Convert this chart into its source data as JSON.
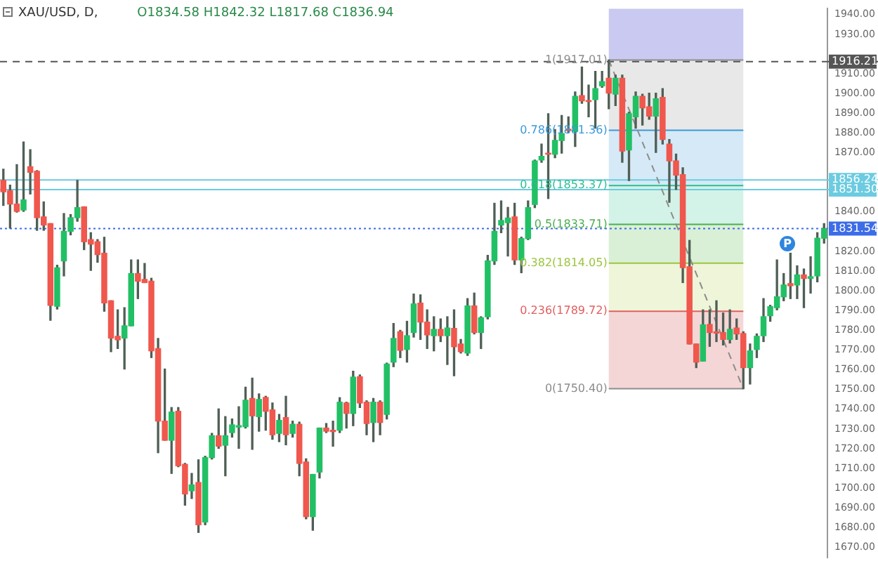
{
  "chart_data": {
    "type": "candlestick",
    "title": "XAU/USD, D,",
    "subtitle": "O1834.58 H1842.32 L1817.68 C1836.94",
    "categories": [
      null,
      null,
      null,
      null,
      null,
      null,
      null,
      null,
      null,
      null,
      null,
      null,
      null,
      null,
      null,
      null,
      null,
      null,
      null,
      null,
      null,
      null,
      null,
      null,
      null,
      null,
      null,
      null,
      null,
      null,
      null,
      null,
      null,
      null,
      null,
      null,
      null,
      null,
      null,
      null,
      null,
      null,
      null,
      null,
      null,
      null,
      null,
      null,
      null,
      null,
      null,
      null,
      null,
      null,
      null,
      null,
      null,
      null,
      null,
      null,
      null,
      null,
      null,
      null,
      null,
      null,
      null,
      null,
      null,
      null,
      null,
      null,
      null,
      null,
      null,
      null,
      null,
      null,
      null,
      null,
      null,
      null,
      null,
      null,
      null,
      null,
      null,
      null,
      null,
      null,
      null,
      null,
      null,
      null,
      null,
      null,
      null,
      null,
      null,
      null,
      null,
      null,
      null,
      null,
      null,
      null,
      null,
      null,
      null,
      null,
      null,
      null,
      null,
      null,
      null,
      null,
      null,
      null,
      null,
      null,
      null,
      null,
      null
    ],
    "ohlc": [
      [
        1856.0,
        1861.7,
        1843.3,
        1850.2
      ],
      [
        1850.7,
        1853.6,
        1831.8,
        1844.0
      ],
      [
        1844.0,
        1864.0,
        1839.9,
        1840.3
      ],
      [
        1841.0,
        1875.5,
        1840.3,
        1846.1
      ],
      [
        1862.9,
        1871.6,
        1849.1,
        1860.1
      ],
      [
        1860.6,
        1861.0,
        1830.7,
        1837.1
      ],
      [
        1837.5,
        1845.1,
        1830.7,
        1833.4
      ],
      [
        1834.1,
        1834.1,
        1785.1,
        1792.7
      ],
      [
        1792.2,
        1813.0,
        1790.8,
        1811.7
      ],
      [
        1815.2,
        1839.2,
        1807.6,
        1830.2
      ],
      [
        1830.2,
        1838.7,
        1828.4,
        1837.1
      ],
      [
        1837.1,
        1856.0,
        1835.3,
        1842.2
      ],
      [
        1842.6,
        1842.6,
        1820.9,
        1824.9
      ],
      [
        1826.0,
        1829.5,
        1810.4,
        1823.7
      ],
      [
        1824.9,
        1826.0,
        1814.5,
        1818.4
      ],
      [
        1819.1,
        1827.2,
        1789.7,
        1793.9
      ],
      [
        1795.0,
        1795.0,
        1769.2,
        1776.1
      ],
      [
        1777.0,
        1790.4,
        1770.8,
        1775.2
      ],
      [
        1776.1,
        1791.5,
        1760.4,
        1782.3
      ],
      [
        1782.3,
        1815.7,
        1782.3,
        1808.8
      ],
      [
        1808.8,
        1815.7,
        1796.1,
        1804.9
      ],
      [
        1805.8,
        1813.9,
        1804.2,
        1804.2
      ],
      [
        1804.9,
        1806.4,
        1766.2,
        1769.6
      ],
      [
        1770.8,
        1775.9,
        1718.0,
        1734.0
      ],
      [
        1734.0,
        1760.4,
        1724.3,
        1724.3
      ],
      [
        1724.3,
        1740.9,
        1707.5,
        1738.6
      ],
      [
        1739.0,
        1740.9,
        1710.9,
        1711.4
      ],
      [
        1712.1,
        1712.6,
        1691.4,
        1697.1
      ],
      [
        1698.7,
        1707.5,
        1694.8,
        1701.7
      ],
      [
        1702.9,
        1714.4,
        1677.6,
        1681.5
      ],
      [
        1682.9,
        1716.2,
        1681.5,
        1715.5
      ],
      [
        1715.5,
        1727.8,
        1714.8,
        1726.6
      ],
      [
        1726.6,
        1740.2,
        1720.2,
        1721.3
      ],
      [
        1721.8,
        1736.3,
        1706.3,
        1726.6
      ],
      [
        1728.2,
        1735.1,
        1725.9,
        1732.1
      ],
      [
        1731.0,
        1741.3,
        1720.2,
        1731.7
      ],
      [
        1731.2,
        1751.2,
        1730.5,
        1744.6
      ],
      [
        1745.5,
        1755.8,
        1719.7,
        1736.7
      ],
      [
        1736.3,
        1747.8,
        1728.9,
        1745.0
      ],
      [
        1746.0,
        1746.6,
        1729.4,
        1739.0
      ],
      [
        1739.7,
        1743.2,
        1724.8,
        1727.1
      ],
      [
        1727.8,
        1737.4,
        1723.6,
        1734.4
      ],
      [
        1735.8,
        1746.6,
        1722.0,
        1727.1
      ],
      [
        1727.8,
        1734.0,
        1725.9,
        1732.4
      ],
      [
        1732.4,
        1733.5,
        1706.3,
        1712.6
      ],
      [
        1713.3,
        1714.9,
        1684.5,
        1685.6
      ],
      [
        1685.6,
        1707.0,
        1678.7,
        1707.0
      ],
      [
        1708.2,
        1730.5,
        1705.2,
        1730.5
      ],
      [
        1730.5,
        1732.8,
        1728.2,
        1728.9
      ],
      [
        1729.4,
        1734.0,
        1721.3,
        1728.7
      ],
      [
        1729.4,
        1745.9,
        1728.2,
        1743.6
      ],
      [
        1743.2,
        1743.6,
        1730.5,
        1737.9
      ],
      [
        1737.9,
        1759.3,
        1731.7,
        1756.3
      ],
      [
        1756.5,
        1757.4,
        1740.9,
        1743.2
      ],
      [
        1743.6,
        1744.3,
        1727.1,
        1732.8
      ],
      [
        1733.3,
        1745.5,
        1723.6,
        1743.6
      ],
      [
        1743.6,
        1744.3,
        1727.1,
        1733.3
      ],
      [
        1737.4,
        1763.4,
        1735.1,
        1762.9
      ],
      [
        1763.9,
        1783.5,
        1761.6,
        1775.9
      ],
      [
        1779.3,
        1780.0,
        1766.2,
        1769.9
      ],
      [
        1770.3,
        1784.6,
        1763.9,
        1777.3
      ],
      [
        1778.9,
        1798.4,
        1776.6,
        1793.4
      ],
      [
        1793.8,
        1798.0,
        1775.4,
        1784.2
      ],
      [
        1784.2,
        1790.4,
        1770.8,
        1777.7
      ],
      [
        1777.3,
        1786.9,
        1769.6,
        1780.5
      ],
      [
        1780.5,
        1785.8,
        1774.3,
        1777.3
      ],
      [
        1777.3,
        1786.9,
        1762.7,
        1781.2
      ],
      [
        1781.0,
        1790.4,
        1757.0,
        1771.7
      ],
      [
        1773.1,
        1775.4,
        1768.5,
        1769.2
      ],
      [
        1768.5,
        1796.1,
        1767.3,
        1792.4
      ],
      [
        1792.4,
        1798.9,
        1778.2,
        1778.9
      ],
      [
        1778.9,
        1786.9,
        1770.8,
        1786.4
      ],
      [
        1786.9,
        1818.0,
        1785.8,
        1815.2
      ],
      [
        1815.2,
        1844.4,
        1813.4,
        1830.2
      ],
      [
        1833.4,
        1845.6,
        1829.5,
        1835.7
      ],
      [
        1834.58,
        1842.32,
        1817.68,
        1836.94
      ],
      [
        1837.5,
        1844.4,
        1813.4,
        1815.7
      ],
      [
        1815.7,
        1827.2,
        1809.2,
        1826.5
      ],
      [
        1826.5,
        1845.6,
        1826.0,
        1842.2
      ],
      [
        1843.8,
        1866.3,
        1842.2,
        1865.9
      ],
      [
        1866.3,
        1874.4,
        1865.2,
        1868.2
      ],
      [
        1869.8,
        1889.8,
        1846.8,
        1869.3
      ],
      [
        1869.3,
        1881.8,
        1867.5,
        1876.3
      ],
      [
        1876.2,
        1888.9,
        1869.8,
        1879.7
      ],
      [
        1882.0,
        1888.2,
        1880.2,
        1881.3
      ],
      [
        1880.8,
        1900.8,
        1873.2,
        1898.6
      ],
      [
        1899.0,
        1913.5,
        1895.1,
        1896.3
      ],
      [
        1896.5,
        1904.3,
        1888.2,
        1896.0
      ],
      [
        1896.9,
        1911.2,
        1882.4,
        1902.5
      ],
      [
        1903.9,
        1911.2,
        1903.2,
        1906.1
      ],
      [
        1907.8,
        1917.01,
        1892.3,
        1900.2
      ],
      [
        1899.7,
        1909.4,
        1893.9,
        1907.8
      ],
      [
        1907.8,
        1909.4,
        1865.2,
        1870.9
      ],
      [
        1871.4,
        1890.5,
        1855.9,
        1889.8
      ],
      [
        1888.2,
        1900.8,
        1882.4,
        1898.6
      ],
      [
        1898.6,
        1899.7,
        1884.0,
        1892.8
      ],
      [
        1893.3,
        1900.2,
        1887.0,
        1888.6
      ],
      [
        1888.6,
        1900.2,
        1870.2,
        1897.4
      ],
      [
        1898.1,
        1902.5,
        1874.4,
        1876.7
      ],
      [
        1874.4,
        1876.7,
        1844.9,
        1865.9
      ],
      [
        1865.9,
        1869.3,
        1851.4,
        1858.7
      ],
      [
        1858.9,
        1862.4,
        1804.2,
        1811.8
      ],
      [
        1812.2,
        1825.6,
        1773.1,
        1773.1
      ],
      [
        1773.1,
        1773.1,
        1761.1,
        1763.9
      ],
      [
        1764.4,
        1790.4,
        1764.4,
        1782.8
      ],
      [
        1783.0,
        1790.4,
        1771.9,
        1778.9
      ],
      [
        1779.3,
        1795.0,
        1774.3,
        1778.6
      ],
      [
        1778.9,
        1788.8,
        1772.6,
        1775.4
      ],
      [
        1775.4,
        1790.4,
        1773.6,
        1780.5
      ],
      [
        1781.2,
        1785.8,
        1775.4,
        1778.2
      ],
      [
        1778.4,
        1779.3,
        1750.4,
        1761.1
      ],
      [
        1761.1,
        1773.1,
        1752.8,
        1769.6
      ],
      [
        1770.3,
        1778.2,
        1766.2,
        1777.0
      ],
      [
        1777.3,
        1796.1,
        1774.3,
        1786.9
      ],
      [
        1787.4,
        1792.7,
        1784.6,
        1792.0
      ],
      [
        1791.5,
        1815.7,
        1790.4,
        1797.0
      ],
      [
        1797.0,
        1808.8,
        1795.0,
        1803.0
      ],
      [
        1803.7,
        1819.1,
        1796.1,
        1802.6
      ],
      [
        1803.0,
        1812.7,
        1796.1,
        1808.1
      ],
      [
        1808.1,
        1811.1,
        1791.5,
        1806.3
      ],
      [
        1806.3,
        1817.3,
        1798.9,
        1807.2
      ],
      [
        1807.6,
        1829.5,
        1804.6,
        1826.7
      ],
      [
        1826.7,
        1834.1,
        1824.2,
        1831.5
      ]
    ],
    "series": [
      {
        "type": "line",
        "color": "#8c8c8c",
        "line_style": "dashed",
        "marker": "none",
        "values": [
          null,
          null,
          null,
          null,
          null,
          null,
          null,
          null,
          null,
          null,
          null,
          null,
          null,
          null,
          null,
          null,
          null,
          null,
          null,
          null,
          null,
          null,
          null,
          null,
          null,
          null,
          null,
          null,
          null,
          null,
          null,
          null,
          null,
          null,
          null,
          null,
          null,
          null,
          null,
          null,
          null,
          null,
          null,
          null,
          null,
          null,
          null,
          null,
          null,
          null,
          null,
          null,
          null,
          null,
          null,
          null,
          null,
          null,
          null,
          null,
          null,
          null,
          null,
          null,
          null,
          null,
          null,
          null,
          null,
          null,
          null,
          null,
          null,
          null,
          null,
          null,
          null,
          null,
          null,
          null,
          null,
          null,
          null,
          null,
          null,
          null,
          null,
          null,
          null,
          null,
          1917.0,
          null,
          null,
          null,
          null,
          null,
          null,
          null,
          null,
          null,
          null,
          null,
          null,
          null,
          null,
          null,
          null,
          null,
          null,
          null,
          1750.4,
          null,
          null,
          null,
          null,
          null,
          null,
          null,
          null,
          null,
          null,
          null,
          null
        ]
      }
    ],
    "ylim": [
      1665,
      1943
    ],
    "yticks": [
      {
        "value": 1670,
        "label": "1670.00"
      },
      {
        "value": 1680,
        "label": "1680.00"
      },
      {
        "value": 1690,
        "label": "1690.00"
      },
      {
        "value": 1700,
        "label": "1700.00"
      },
      {
        "value": 1710,
        "label": "1710.00"
      },
      {
        "value": 1720,
        "label": "1720.00"
      },
      {
        "value": 1730,
        "label": "1730.00"
      },
      {
        "value": 1740,
        "label": "1740.00"
      },
      {
        "value": 1750,
        "label": "1750.00"
      },
      {
        "value": 1760,
        "label": "1760.00"
      },
      {
        "value": 1770,
        "label": "1770.00"
      },
      {
        "value": 1780,
        "label": "1780.00"
      },
      {
        "value": 1790,
        "label": "1790.00"
      },
      {
        "value": 1800,
        "label": "1800.00"
      },
      {
        "value": 1810,
        "label": "1810.00"
      },
      {
        "value": 1820,
        "label": "1820.00"
      },
      {
        "value": 1840,
        "label": "1840.00"
      },
      {
        "value": 1870,
        "label": "1870.00"
      },
      {
        "value": 1880,
        "label": "1880.00"
      },
      {
        "value": 1890,
        "label": "1890.00"
      },
      {
        "value": 1900,
        "label": "1900.00"
      },
      {
        "value": 1910,
        "label": "1910.00"
      },
      {
        "value": 1930,
        "label": "1930.00"
      },
      {
        "value": 1940,
        "label": "1940.00"
      }
    ],
    "bands": [
      {
        "axis": "y",
        "from": 1917.01,
        "to": 1943,
        "color": "#c9c9f2"
      },
      {
        "axis": "y",
        "from": 1881.36,
        "to": 1917.01,
        "color": "#e8e8e8"
      },
      {
        "axis": "y",
        "from": 1853.37,
        "to": 1881.36,
        "color": "#d6e9f6"
      },
      {
        "axis": "y",
        "from": 1833.71,
        "to": 1853.37,
        "color": "#d3f2e8"
      },
      {
        "axis": "y",
        "from": 1814.05,
        "to": 1833.71,
        "color": "#d9f0d6"
      },
      {
        "axis": "y",
        "from": 1789.72,
        "to": 1814.05,
        "color": "#eef5d9"
      },
      {
        "axis": "y",
        "from": 1750.4,
        "to": 1789.72,
        "color": "#f5d6d6"
      }
    ],
    "ref_lines": [
      {
        "axis": "y",
        "value": 1917.01,
        "label": "1(1917.01)",
        "color": "#8c8c8c",
        "line_style": "solid"
      },
      {
        "axis": "y",
        "value": 1881.36,
        "label": "0.786(1881.36)",
        "color": "#3a9ad9",
        "line_style": "solid"
      },
      {
        "axis": "y",
        "value": 1853.37,
        "label": "0.618(1853.37)",
        "color": "#2bbf91",
        "line_style": "solid"
      },
      {
        "axis": "y",
        "value": 1833.71,
        "label": "0.5(1833.71)",
        "color": "#4caf50",
        "line_style": "solid"
      },
      {
        "axis": "y",
        "value": 1814.05,
        "label": "0.382(1814.05)",
        "color": "#9bc53d",
        "line_style": "solid"
      },
      {
        "axis": "y",
        "value": 1789.72,
        "label": "0.236(1789.72)",
        "color": "#e06060",
        "line_style": "solid"
      },
      {
        "axis": "y",
        "value": 1750.4,
        "label": "0(1750.40)",
        "color": "#8c8c8c",
        "line_style": "solid"
      },
      {
        "axis": "y",
        "value": 1916.21,
        "label": "1916.21",
        "color": "#555555",
        "line_style": "dashed"
      },
      {
        "axis": "y",
        "value": 1856.24,
        "label": "1856.24",
        "color": "#6ccbe0",
        "line_style": "solid"
      },
      {
        "axis": "y",
        "value": 1851.3,
        "label": "1851.30",
        "color": "#6ccbe0",
        "line_style": "solid"
      },
      {
        "axis": "y",
        "value": 1831.54,
        "label": "1831.54",
        "color": "#3d6ce8",
        "line_style": "dotted"
      }
    ],
    "annotations": [
      "P"
    ],
    "grid": false,
    "legend": false,
    "tick_labels": "y"
  }
}
